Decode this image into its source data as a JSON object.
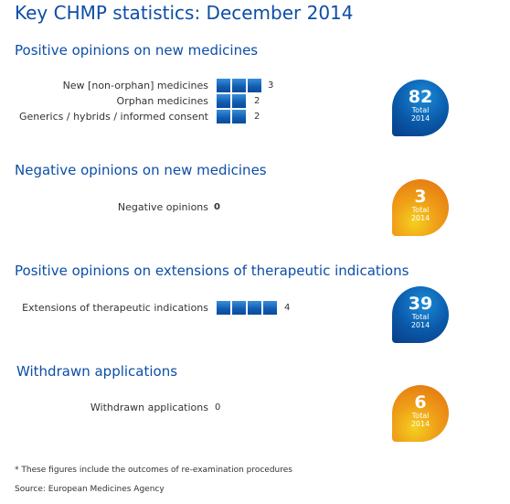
{
  "title": "Key CHMP statistics: December 2014",
  "chart_data": {
    "type": "bar",
    "sections": [
      {
        "title": "Positive opinions on new medicines",
        "rows": [
          {
            "label": "New [non-orphan] medicines",
            "value": 3
          },
          {
            "label": "Orphan medicines",
            "value": 2
          },
          {
            "label": "Generics / hybrids / informed consent",
            "value": 2
          }
        ],
        "total": "82",
        "total_label": "Total",
        "total_year": "2014",
        "badge_color": "blue"
      },
      {
        "title": "Negative opinions on new medicines",
        "rows": [
          {
            "label": "Negative opinions",
            "value": 0
          }
        ],
        "total": "3",
        "total_label": "Total",
        "total_year": "2014",
        "badge_color": "orange"
      },
      {
        "title": "Positive opinions on extensions of therapeutic indications",
        "rows": [
          {
            "label": "Extensions of therapeutic indications",
            "value": 4
          }
        ],
        "total": "39",
        "total_label": "Total",
        "total_year": "2014",
        "badge_color": "blue"
      },
      {
        "title": "Withdrawn applications",
        "rows": [
          {
            "label": "Withdrawn applications",
            "value": 0
          }
        ],
        "total": "6",
        "total_label": "Total",
        "total_year": "2014",
        "badge_color": "orange"
      }
    ]
  },
  "footnote": "* These figures include the outcomes of re-examination procedures",
  "source": "Source: European Medicines Agency",
  "colors": {
    "title_blue": "#0d4ea6",
    "bar_blue": "#0f5bb0",
    "badge_blue": "#0a58a8",
    "badge_orange": "#e88a14"
  }
}
